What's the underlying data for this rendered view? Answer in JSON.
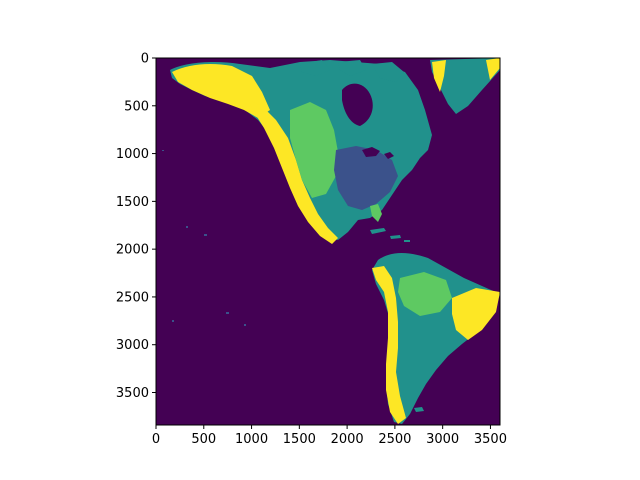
{
  "chart_data": {
    "type": "heatmap",
    "title": "",
    "xlabel": "",
    "ylabel": "",
    "xlim": [
      0,
      3600
    ],
    "ylim": [
      3840,
      0
    ],
    "y_axis_inverted": true,
    "x_ticks": [
      0,
      500,
      1000,
      1500,
      2000,
      2500,
      3000,
      3500
    ],
    "y_ticks": [
      0,
      500,
      1000,
      1500,
      2000,
      2500,
      3000,
      3500
    ],
    "x_tick_labels": [
      "0",
      "500",
      "1000",
      "1500",
      "2000",
      "2500",
      "3000",
      "3500"
    ],
    "y_tick_labels": [
      "0",
      "500",
      "1000",
      "1500",
      "2000",
      "2500",
      "3000",
      "3500"
    ],
    "grid": false,
    "legend": "none",
    "colormap": "viridis",
    "colors": {
      "background": "#440154",
      "low": "#3b528b",
      "mid": "#21918c",
      "mid_high": "#5ec962",
      "high": "#fde725"
    },
    "content": "raster map of North and South America"
  }
}
